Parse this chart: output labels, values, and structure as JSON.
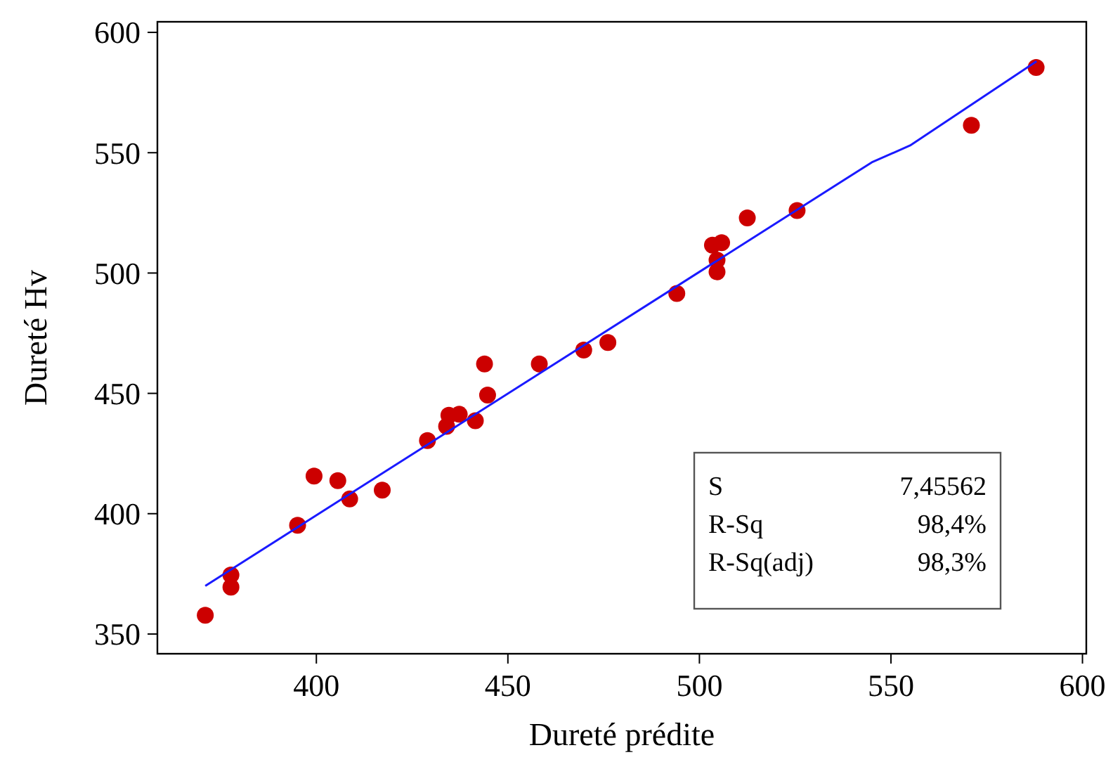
{
  "chart_data": {
    "type": "scatter",
    "xlabel": "Dureté prédite",
    "ylabel": "Dureté Hv",
    "xlim": [
      358.5,
      601
    ],
    "xticks": [
      400,
      450,
      500,
      550,
      600
    ],
    "ylim": [
      341.8,
      604.4
    ],
    "yticks": [
      350,
      400,
      450,
      500,
      550,
      600
    ],
    "grid": false,
    "series": [
      {
        "marker": "circle",
        "color": "#cc0000",
        "x": [
          371,
          377.7,
          377.7,
          395.1,
          399.4,
          405.6,
          408.7,
          417.2,
          429,
          434,
          434.6,
          437.3,
          441.5,
          443.9,
          444.7,
          458.2,
          469.8,
          476.1,
          494.1,
          503.4,
          505.8,
          504.6,
          504.6,
          512.5,
          525.5,
          571,
          587.9
        ],
        "values": [
          357.8,
          374.5,
          369.5,
          395.2,
          415.6,
          413.7,
          406.1,
          409.8,
          430.4,
          436.3,
          440.9,
          441.3,
          438.6,
          462.2,
          449.3,
          462.2,
          468,
          471.1,
          491.5,
          511.6,
          512.6,
          505.4,
          500.5,
          522.9,
          526,
          561.4,
          585.4
        ]
      },
      {
        "type": "line",
        "color": "#1a1aff",
        "x": [
          371,
          545,
          555,
          588
        ],
        "values": [
          370,
          546,
          553,
          588
        ]
      }
    ],
    "annotations": [
      "S 7,45562",
      "R-Sq 98,4%",
      "R-Sq(adj) 98,3%"
    ]
  }
}
